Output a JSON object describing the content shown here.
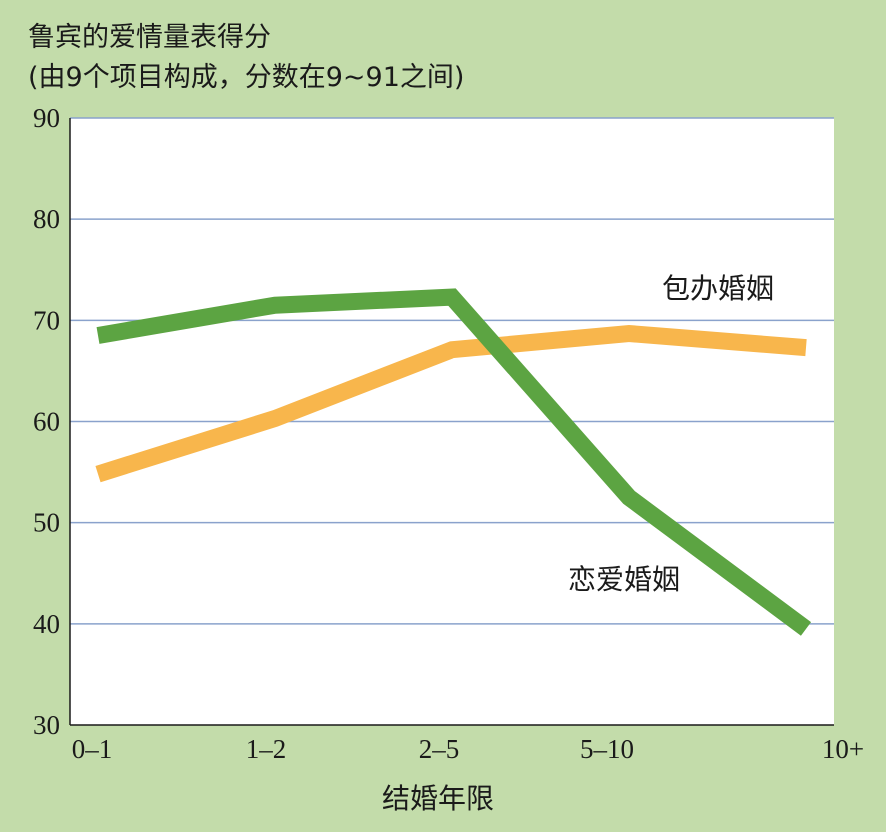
{
  "chart_data": {
    "type": "line",
    "title": "鲁宾的爱情量表得分",
    "subtitle": "(由9个项目构成，分数在9~91之间)",
    "xlabel": "结婚年限",
    "ylabel": "",
    "categories": [
      "0–1",
      "1–2",
      "2–5",
      "5–10",
      "10+"
    ],
    "ylim": [
      30,
      90
    ],
    "yticks": [
      30,
      40,
      50,
      60,
      70,
      80,
      90
    ],
    "grid": true,
    "legend": "inline-labels",
    "series": [
      {
        "name": "恋爱婚姻",
        "color": "#5ca442",
        "values": [
          68.5,
          71.5,
          72.3,
          52.5,
          39.5
        ]
      },
      {
        "name": "包办婚姻",
        "color": "#f8b64c",
        "values": [
          54.8,
          60.3,
          67.1,
          68.7,
          67.3
        ]
      }
    ]
  },
  "colors": {
    "background": "#c3dcaa",
    "plot": "#ffffff",
    "grid": "#8aa2cc",
    "axis": "#1a1a1a"
  }
}
